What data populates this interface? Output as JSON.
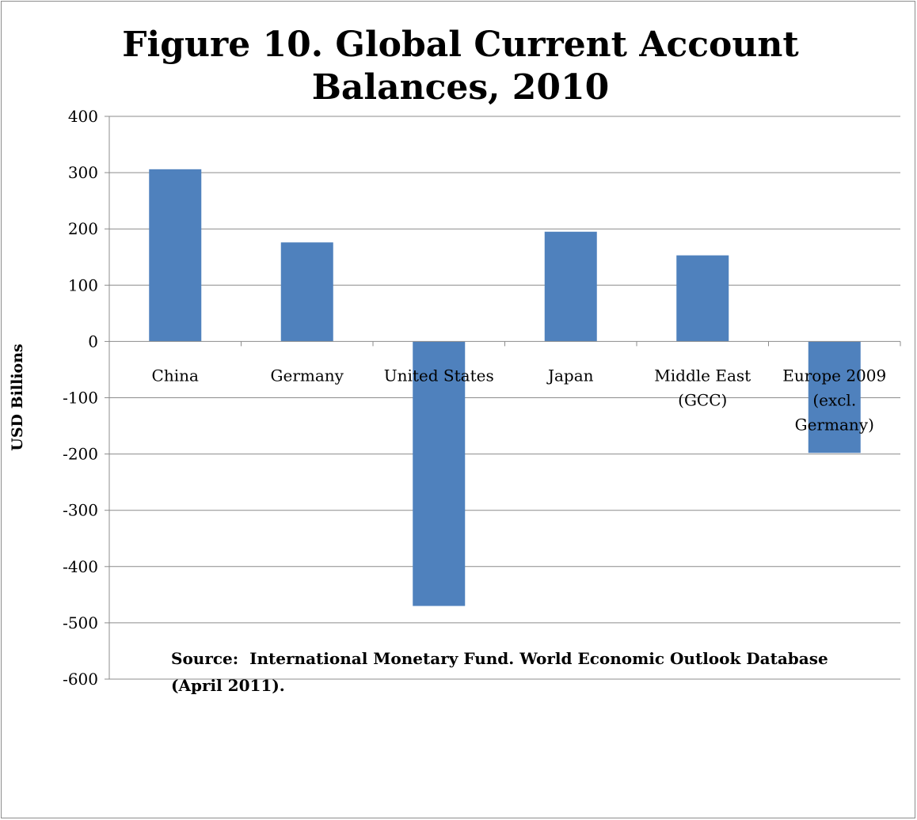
{
  "chart_data": {
    "type": "bar",
    "title_lines": [
      "Figure 10. Global Current Account",
      "Balances, 2010"
    ],
    "ylabel": "USD Billions",
    "xlabel": "",
    "categories": [
      [
        "China"
      ],
      [
        "Germany"
      ],
      [
        "United States"
      ],
      [
        "Japan"
      ],
      [
        "Middle East",
        "(GCC)"
      ],
      [
        "Europe 2009",
        "(excl.",
        "Germany)"
      ]
    ],
    "values": [
      306,
      176,
      -470,
      195,
      153,
      -198
    ],
    "ylim": [
      -600,
      400
    ],
    "yticks": [
      "400",
      "300",
      "200",
      "100",
      "0",
      "-100",
      "-200",
      "-300",
      "-400",
      "-500",
      "-600"
    ],
    "ytick_values": [
      400,
      300,
      200,
      100,
      0,
      -100,
      -200,
      -300,
      -400,
      -500,
      -600
    ],
    "grid": true,
    "legend": "none",
    "bar_color": "#4f81bd",
    "grid_color": "#8c8c8c"
  },
  "source": {
    "label": "Source:",
    "text": "International Monetary Fund. World Economic Outlook Database (April 2011)."
  }
}
